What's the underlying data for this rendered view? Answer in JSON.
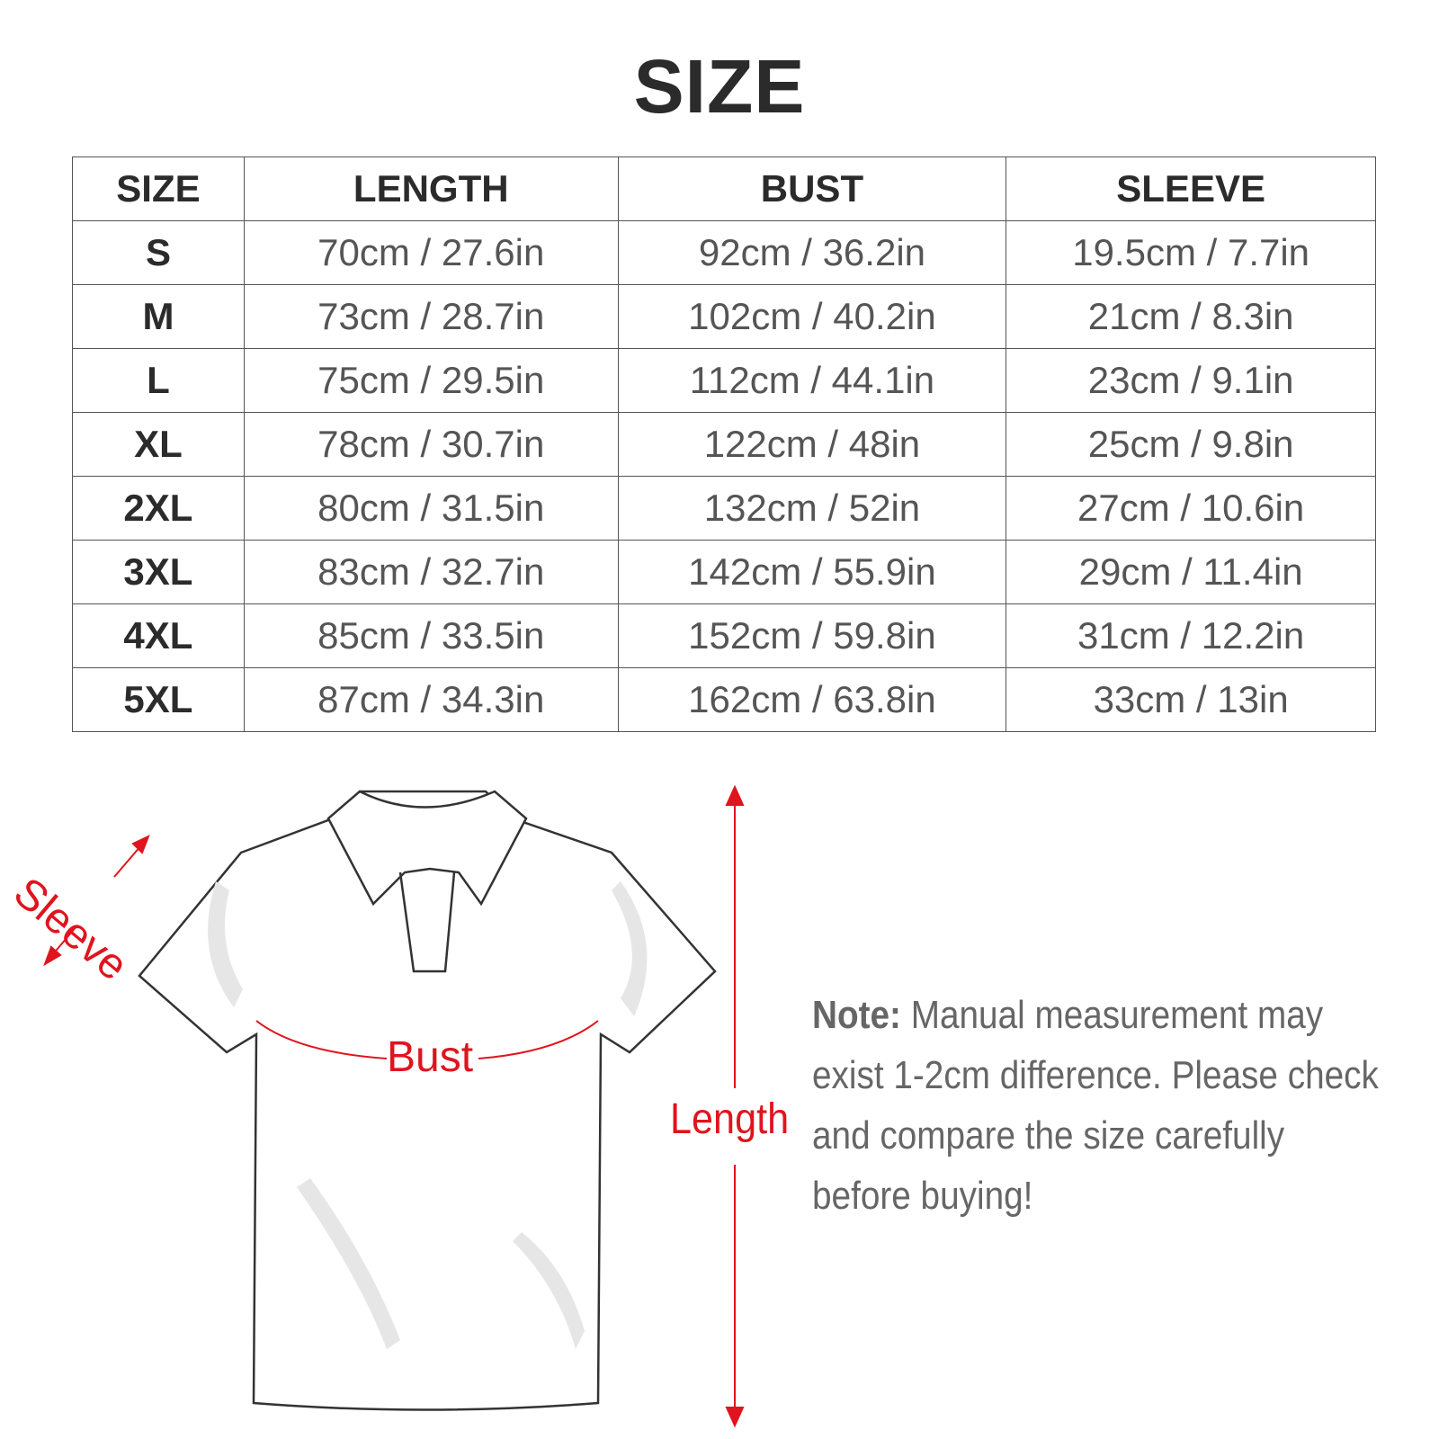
{
  "title": "SIZE",
  "table": {
    "headers": [
      "SIZE",
      "LENGTH",
      "BUST",
      "SLEEVE"
    ],
    "rows": [
      [
        "S",
        "70cm / 27.6in",
        "92cm / 36.2in",
        "19.5cm / 7.7in"
      ],
      [
        "M",
        "73cm / 28.7in",
        "102cm / 40.2in",
        "21cm / 8.3in"
      ],
      [
        "L",
        "75cm / 29.5in",
        "112cm / 44.1in",
        "23cm / 9.1in"
      ],
      [
        "XL",
        "78cm / 30.7in",
        "122cm / 48in",
        "25cm / 9.8in"
      ],
      [
        "2XL",
        "80cm / 31.5in",
        "132cm / 52in",
        "27cm / 10.6in"
      ],
      [
        "3XL",
        "83cm / 32.7in",
        "142cm / 55.9in",
        "29cm / 11.4in"
      ],
      [
        "4XL",
        "85cm / 33.5in",
        "152cm / 59.8in",
        "31cm / 12.2in"
      ],
      [
        "5XL",
        "87cm / 34.3in",
        "162cm / 63.8in",
        "33cm / 13in"
      ]
    ]
  },
  "diagram": {
    "sleeve_label": "Sleeve",
    "bust_label": "Bust",
    "length_label": "Length",
    "accent_color": "#e0141e"
  },
  "note": {
    "label": "Note:",
    "text": "Manual measurement may exist 1-2cm difference. Please check and compare the size carefully before buying!"
  }
}
